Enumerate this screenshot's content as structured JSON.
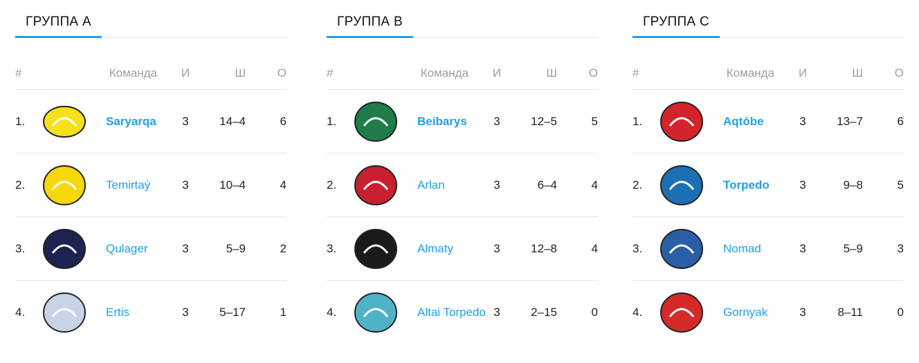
{
  "headers": {
    "pos": "#",
    "team": "Команда",
    "games": "И",
    "goals": "Ш",
    "points": "О"
  },
  "accent": "#1ea1e8",
  "groups": [
    {
      "title": "ГРУППА A",
      "rows": [
        {
          "pos": "1.",
          "team": "Saryarqa",
          "games": "3",
          "goals": "14–4",
          "points": "6",
          "bold": true,
          "logo": "saryarqa-logo",
          "color": "#f5e11a"
        },
        {
          "pos": "2.",
          "team": "Temirtaý",
          "games": "3",
          "goals": "10–4",
          "points": "4",
          "bold": false,
          "logo": "temirtau-logo",
          "color": "#f5d80a"
        },
        {
          "pos": "3.",
          "team": "Qulager",
          "games": "3",
          "goals": "5–9",
          "points": "2",
          "bold": false,
          "logo": "qulager-logo",
          "color": "#1c2350"
        },
        {
          "pos": "4.",
          "team": "Ertis",
          "games": "3",
          "goals": "5–17",
          "points": "1",
          "bold": false,
          "logo": "ertis-logo",
          "color": "#c7d3e6"
        }
      ]
    },
    {
      "title": "ГРУППА B",
      "rows": [
        {
          "pos": "1.",
          "team": "Beibarys",
          "games": "3",
          "goals": "12–5",
          "points": "5",
          "bold": true,
          "logo": "beibarys-logo",
          "color": "#1e7d4a"
        },
        {
          "pos": "2.",
          "team": "Arlan",
          "games": "3",
          "goals": "6–4",
          "points": "4",
          "bold": false,
          "logo": "arlan-logo",
          "color": "#c8202e"
        },
        {
          "pos": "3.",
          "team": "Almaty",
          "games": "3",
          "goals": "12–8",
          "points": "4",
          "bold": false,
          "logo": "almaty-logo",
          "color": "#1a1a1a"
        },
        {
          "pos": "4.",
          "team": "Altai Torpedo",
          "games": "3",
          "goals": "2–15",
          "points": "0",
          "bold": false,
          "logo": "altai-torpedo-logo",
          "color": "#4fb3c8"
        }
      ]
    },
    {
      "title": "ГРУППА C",
      "rows": [
        {
          "pos": "1.",
          "team": "Aqtóbe",
          "games": "3",
          "goals": "13–7",
          "points": "6",
          "bold": true,
          "logo": "aqtobe-logo",
          "color": "#d4232b"
        },
        {
          "pos": "2.",
          "team": "Torpedo",
          "games": "3",
          "goals": "9–8",
          "points": "5",
          "bold": true,
          "logo": "torpedo-logo",
          "color": "#1b6fb5"
        },
        {
          "pos": "3.",
          "team": "Nomad",
          "games": "3",
          "goals": "5–9",
          "points": "3",
          "bold": false,
          "logo": "nomad-logo",
          "color": "#2a5fa8"
        },
        {
          "pos": "4.",
          "team": "Gornyak",
          "games": "3",
          "goals": "8–11",
          "points": "0",
          "bold": false,
          "logo": "gornyak-logo",
          "color": "#d42a2a"
        }
      ]
    }
  ]
}
